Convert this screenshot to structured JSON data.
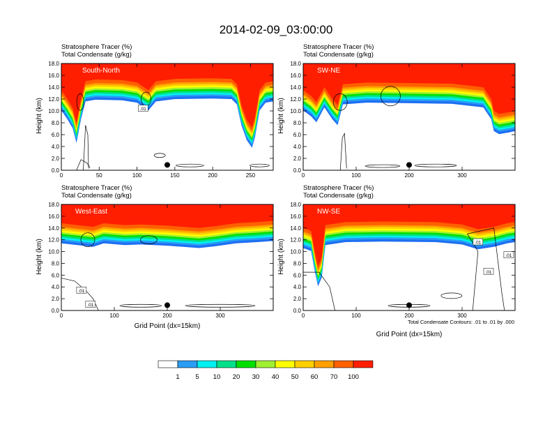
{
  "chart_data": {
    "type": "heatmap",
    "title": "2014-02-09_03:00:00",
    "colorbar": {
      "colors": [
        "#ffffff",
        "#1e6ff2",
        "#2a9df4",
        "#00f0f0",
        "#00e08a",
        "#00e000",
        "#a0f030",
        "#ffff00",
        "#ffd000",
        "#ffa000",
        "#ff6000",
        "#ff1e00"
      ],
      "levels": [
        "1",
        "5",
        "10",
        "20",
        "30",
        "40",
        "50",
        "60",
        "70",
        "100"
      ],
      "placement": "bottom-center"
    },
    "contour_note": "Total Condensate Contours: .01 to .01 by .000",
    "panels": [
      {
        "label": "South-North",
        "subtitle_1": "Stratosphere Tracer   (%)",
        "subtitle_2": "Total Condensate   (g/kg)",
        "ylabel": "Height (km)",
        "xlabel": "",
        "x_range": [
          0,
          280
        ],
        "x_ticks": [
          "0",
          "50",
          "100",
          "150",
          "200",
          "250"
        ],
        "x_tick_values": [
          0,
          50,
          100,
          150,
          200,
          250
        ],
        "y_ticks": [
          "0.0",
          "2.0",
          "4.0",
          "6.0",
          "8.0",
          "10.0",
          "12.0",
          "14.0",
          "16.0",
          "18.0"
        ],
        "y_range": [
          0,
          18
        ],
        "marker_x": 140,
        "contour_labels": [
          ".01"
        ],
        "tracer_top": [
          [
            0,
            13.5
          ],
          [
            8,
            12
          ],
          [
            15,
            10.5
          ],
          [
            20,
            8
          ],
          [
            26,
            12
          ],
          [
            32,
            15
          ],
          [
            45,
            15.3
          ],
          [
            80,
            15.2
          ],
          [
            100,
            14.8
          ],
          [
            115,
            13.5
          ],
          [
            125,
            15
          ],
          [
            150,
            15.4
          ],
          [
            200,
            15.5
          ],
          [
            225,
            15.4
          ],
          [
            232,
            14.5
          ],
          [
            238,
            11
          ],
          [
            245,
            8.5
          ],
          [
            252,
            7.2
          ],
          [
            256,
            9
          ],
          [
            262,
            13.5
          ],
          [
            270,
            14.8
          ],
          [
            280,
            15
          ]
        ]
      },
      {
        "label": "SW-NE",
        "subtitle_1": "Stratosphere Tracer   (%)",
        "subtitle_2": "Total Condensate   (g/kg)",
        "ylabel": "Height (km)",
        "xlabel": "",
        "x_range": [
          0,
          400
        ],
        "x_ticks": [
          "0",
          "100",
          "200",
          "300"
        ],
        "x_tick_values": [
          0,
          100,
          200,
          300
        ],
        "y_ticks": [
          "0.0",
          "2.0",
          "4.0",
          "6.0",
          "8.0",
          "10.0",
          "12.0",
          "14.0",
          "16.0",
          "18.0"
        ],
        "y_range": [
          0,
          18
        ],
        "marker_x": 200,
        "contour_labels": [],
        "tracer_top": [
          [
            0,
            13.5
          ],
          [
            15,
            12.5
          ],
          [
            25,
            11.5
          ],
          [
            40,
            14
          ],
          [
            55,
            12
          ],
          [
            65,
            11
          ],
          [
            75,
            14.5
          ],
          [
            120,
            14.8
          ],
          [
            200,
            14.7
          ],
          [
            280,
            14.6
          ],
          [
            340,
            14
          ],
          [
            355,
            12
          ],
          [
            360,
            10
          ],
          [
            370,
            9.5
          ],
          [
            390,
            9.8
          ],
          [
            400,
            10
          ]
        ]
      },
      {
        "label": "West-East",
        "subtitle_1": "Stratosphere Tracer   (%)",
        "subtitle_2": "Total Condensate   (g/kg)",
        "ylabel": "Height (km)",
        "xlabel": "Grid Point (dx=15km)",
        "x_range": [
          0,
          400
        ],
        "x_ticks": [
          "0",
          "100",
          "200",
          "300"
        ],
        "x_tick_values": [
          0,
          100,
          200,
          300
        ],
        "y_ticks": [
          "0.0",
          "2.0",
          "4.0",
          "6.0",
          "8.0",
          "10.0",
          "12.0",
          "14.0",
          "16.0",
          "18.0"
        ],
        "y_range": [
          0,
          18
        ],
        "marker_x": 200,
        "contour_labels": [
          ".01",
          ".01"
        ],
        "tracer_top": [
          [
            0,
            14.8
          ],
          [
            30,
            14.5
          ],
          [
            60,
            14.2
          ],
          [
            80,
            14.8
          ],
          [
            120,
            14.5
          ],
          [
            150,
            14.6
          ],
          [
            200,
            14.4
          ],
          [
            260,
            14.0
          ],
          [
            290,
            14.3
          ],
          [
            330,
            14.8
          ],
          [
            370,
            15.0
          ],
          [
            400,
            15.2
          ]
        ]
      },
      {
        "label": "NW-SE",
        "subtitle_1": "Stratosphere Tracer   (%)",
        "subtitle_2": "Total Condensate   (g/kg)",
        "ylabel": "Height (km)",
        "xlabel": "Grid Point (dx=15km)",
        "x_range": [
          0,
          400
        ],
        "x_ticks": [
          "0",
          "100",
          "200",
          "300"
        ],
        "x_tick_values": [
          0,
          100,
          200,
          300
        ],
        "y_ticks": [
          "0.0",
          "2.0",
          "4.0",
          "6.0",
          "8.0",
          "10.0",
          "12.0",
          "14.0",
          "16.0",
          "18.0"
        ],
        "y_range": [
          0,
          18
        ],
        "marker_x": 200,
        "contour_labels": [
          ".01",
          ".01",
          ".01"
        ],
        "tracer_top": [
          [
            0,
            14
          ],
          [
            15,
            13.5
          ],
          [
            22,
            10
          ],
          [
            28,
            7.5
          ],
          [
            35,
            9
          ],
          [
            42,
            14.5
          ],
          [
            80,
            15
          ],
          [
            150,
            15.1
          ],
          [
            250,
            15
          ],
          [
            300,
            14.6
          ],
          [
            330,
            13.8
          ],
          [
            360,
            14.2
          ],
          [
            385,
            14.8
          ],
          [
            400,
            15
          ]
        ]
      }
    ]
  }
}
